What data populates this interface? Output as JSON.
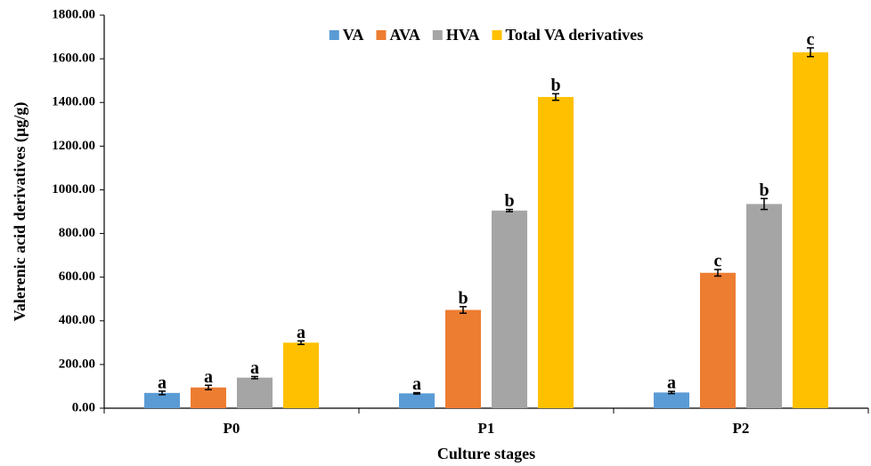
{
  "chart_data": {
    "type": "bar",
    "x_label": "Culture stages",
    "y_label": "Valerenic  acid derivatives (µg/g)",
    "categories": [
      "P0",
      "P1",
      "P2"
    ],
    "ylim": [
      0,
      1800
    ],
    "yticks": [
      {
        "value": 0,
        "label": "0.00"
      },
      {
        "value": 200,
        "label": "200.00"
      },
      {
        "value": 400,
        "label": "400.00"
      },
      {
        "value": 600,
        "label": "600.00"
      },
      {
        "value": 800,
        "label": "800.00"
      },
      {
        "value": 1000,
        "label": "1000.00"
      },
      {
        "value": 1200,
        "label": "1200.00"
      },
      {
        "value": 1400,
        "label": "1400.00"
      },
      {
        "value": 1600,
        "label": "1600.00"
      },
      {
        "value": 1800,
        "label": "1800.00"
      }
    ],
    "grid": false,
    "legend": "top",
    "series": [
      {
        "name": "VA",
        "color": "#5b9bd5",
        "values": [
          70,
          68,
          72
        ],
        "errors": [
          8,
          3,
          5
        ],
        "letters": [
          "a",
          "a",
          "a"
        ]
      },
      {
        "name": "AVA",
        "color": "#ed7d31",
        "values": [
          95,
          450,
          620
        ],
        "errors": [
          10,
          15,
          15
        ],
        "letters": [
          "a",
          "b",
          "c"
        ]
      },
      {
        "name": "HVA",
        "color": "#a5a5a5",
        "values": [
          140,
          905,
          935
        ],
        "errors": [
          5,
          5,
          25
        ],
        "letters": [
          "a",
          "b",
          "b"
        ]
      },
      {
        "name": "Total VA derivatives",
        "color": "#ffc000",
        "values": [
          300,
          1425,
          1630
        ],
        "errors": [
          8,
          15,
          20
        ],
        "letters": [
          "a",
          "b",
          "c"
        ]
      }
    ]
  }
}
